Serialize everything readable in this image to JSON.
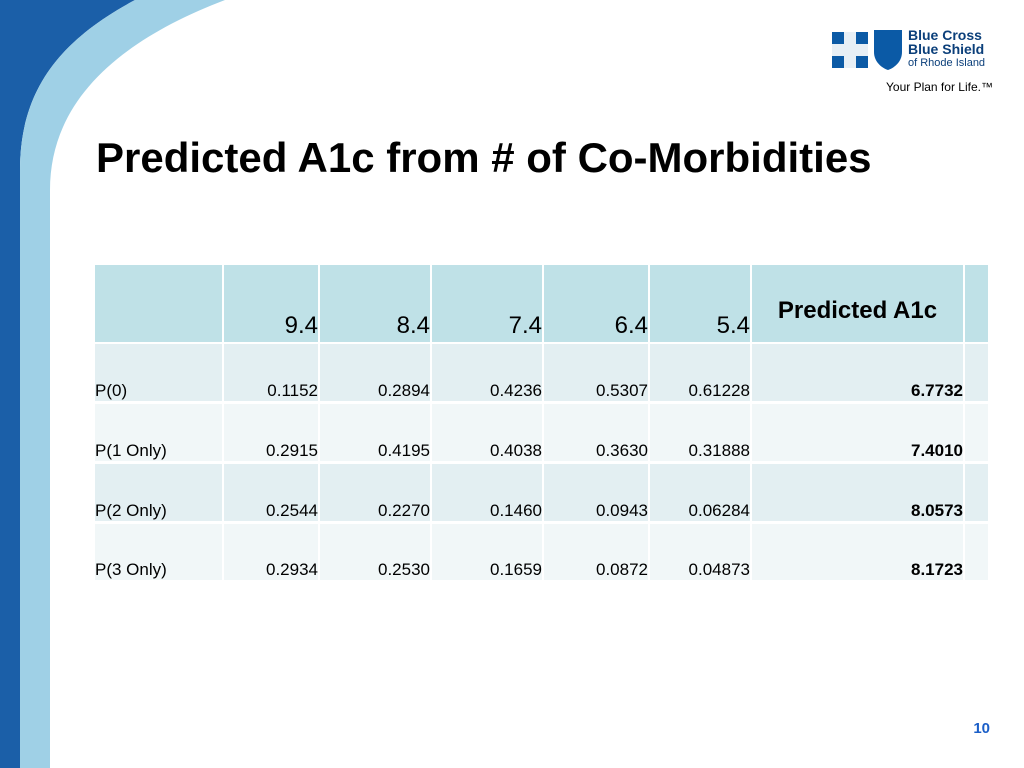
{
  "logo": {
    "line1": "Blue Cross",
    "line2": "Blue Shield",
    "line3": "of Rhode Island",
    "tagline": "Your Plan for Life.™"
  },
  "title": "Predicted A1c from # of Co-Morbidities",
  "table": {
    "header": [
      "9.4",
      "8.4",
      "7.4",
      "6.4",
      "5.4",
      "Predicted A1c"
    ],
    "rows": [
      [
        "P(0)",
        "0.1152",
        "0.2894",
        "0.4236",
        "0.5307",
        "0.61228",
        "6.7732"
      ],
      [
        "P(1 Only)",
        "0.2915",
        "0.4195",
        "0.4038",
        "0.3630",
        "0.31888",
        "7.4010"
      ],
      [
        "P(2 Only)",
        "0.2544",
        "0.2270",
        "0.1460",
        "0.0943",
        "0.06284",
        "8.0573"
      ],
      [
        "P(3 Only)",
        "0.2934",
        "0.2530",
        "0.1659",
        "0.0872",
        "0.04873",
        "8.1723"
      ]
    ]
  },
  "page_number": "10"
}
